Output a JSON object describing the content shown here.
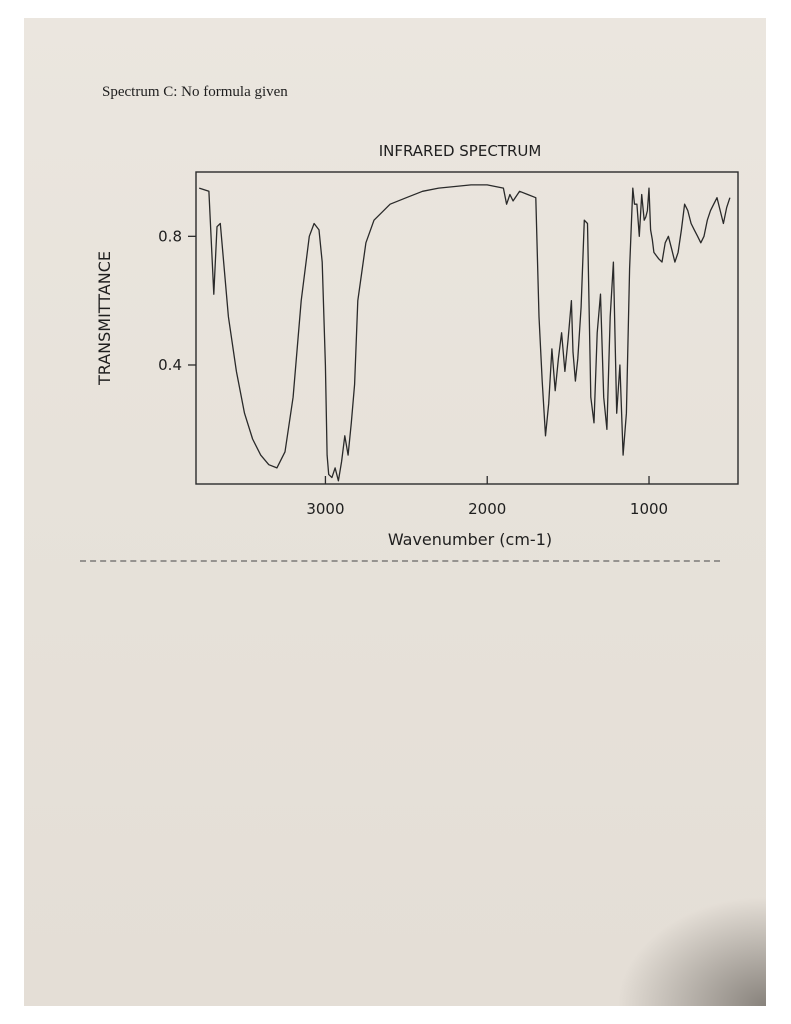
{
  "heading": "Spectrum C: No formula given",
  "colors": {
    "paper": "#e9e4dc",
    "ink": "#1f1f1f",
    "line": "#2a2a2a"
  },
  "chart_data": {
    "type": "line",
    "title": "INFRARED SPECTRUM",
    "xlabel": "Wavenumber (cm-1)",
    "ylabel": "TRANSMITTANCE",
    "xlim": [
      3800,
      450
    ],
    "ylim": [
      0.03,
      1.0
    ],
    "x_reversed": true,
    "x_ticks": [
      3000,
      2000,
      1000
    ],
    "y_ticks": [
      0.8,
      0.4
    ],
    "grid": false,
    "series": [
      {
        "x": [
          3780,
          3720,
          3690,
          3670,
          3650,
          3600,
          3550,
          3500,
          3450,
          3400,
          3350,
          3300,
          3250,
          3200,
          3150,
          3100,
          3070,
          3040,
          3020,
          3000,
          2990,
          2980,
          2960,
          2940,
          2920,
          2900,
          2880,
          2860,
          2840,
          2820,
          2800,
          2750,
          2700,
          2600,
          2500,
          2400,
          2300,
          2200,
          2100,
          2000,
          1950,
          1900,
          1880,
          1860,
          1840,
          1800,
          1750,
          1700,
          1680,
          1660,
          1640,
          1620,
          1600,
          1580,
          1560,
          1540,
          1520,
          1500,
          1480,
          1470,
          1455,
          1440,
          1420,
          1400,
          1380,
          1360,
          1340,
          1320,
          1300,
          1280,
          1260,
          1240,
          1220,
          1200,
          1180,
          1160,
          1140,
          1120,
          1100,
          1090,
          1075,
          1060,
          1045,
          1030,
          1020,
          1010,
          1000,
          990,
          980,
          970,
          955,
          940,
          920,
          900,
          880,
          860,
          840,
          820,
          800,
          780,
          760,
          740,
          720,
          700,
          680,
          660,
          640,
          620,
          600,
          580,
          560,
          540,
          520,
          500
        ],
        "y": [
          0.95,
          0.94,
          0.62,
          0.83,
          0.84,
          0.55,
          0.38,
          0.25,
          0.17,
          0.12,
          0.09,
          0.08,
          0.13,
          0.3,
          0.6,
          0.8,
          0.84,
          0.82,
          0.72,
          0.4,
          0.12,
          0.06,
          0.05,
          0.08,
          0.04,
          0.1,
          0.18,
          0.12,
          0.22,
          0.34,
          0.6,
          0.78,
          0.85,
          0.9,
          0.92,
          0.94,
          0.95,
          0.955,
          0.96,
          0.96,
          0.955,
          0.95,
          0.9,
          0.93,
          0.91,
          0.94,
          0.93,
          0.92,
          0.55,
          0.35,
          0.18,
          0.28,
          0.45,
          0.32,
          0.42,
          0.5,
          0.38,
          0.48,
          0.6,
          0.44,
          0.35,
          0.42,
          0.58,
          0.85,
          0.84,
          0.3,
          0.22,
          0.5,
          0.62,
          0.3,
          0.2,
          0.55,
          0.72,
          0.25,
          0.4,
          0.12,
          0.25,
          0.7,
          0.95,
          0.9,
          0.9,
          0.8,
          0.93,
          0.85,
          0.86,
          0.88,
          0.95,
          0.82,
          0.79,
          0.75,
          0.74,
          0.73,
          0.72,
          0.78,
          0.8,
          0.76,
          0.72,
          0.75,
          0.82,
          0.9,
          0.88,
          0.84,
          0.82,
          0.8,
          0.78,
          0.8,
          0.85,
          0.88,
          0.9,
          0.92,
          0.88,
          0.84,
          0.89,
          0.92
        ]
      }
    ]
  }
}
